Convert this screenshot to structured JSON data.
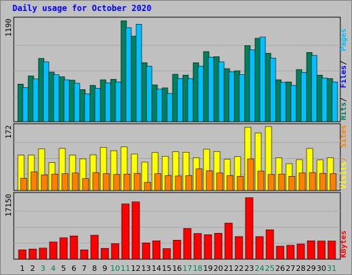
{
  "title": "Daily usage for October 2020",
  "colors": {
    "hits": "#00805c",
    "files": "#0000ff",
    "pages": "#00c0ff",
    "visits": "#ff8000",
    "sites": "#ffff00",
    "kbytes": "#ff0000",
    "weekday": "#000000",
    "weekend": "#00805c"
  },
  "chart_data": {
    "type": "bar",
    "categories": [
      "1",
      "2",
      "3",
      "4",
      "5",
      "6",
      "7",
      "8",
      "9",
      "10",
      "11",
      "12",
      "13",
      "14",
      "15",
      "16",
      "17",
      "18",
      "19",
      "20",
      "21",
      "22",
      "23",
      "24",
      "25",
      "26",
      "27",
      "28",
      "29",
      "30",
      "31"
    ],
    "weekend_days": [
      "3",
      "4",
      "10",
      "11",
      "17",
      "18",
      "24",
      "25",
      "31"
    ],
    "panels": [
      {
        "id": "hits-panel",
        "max_label": "1190",
        "ymax": 1190,
        "legend": [
          {
            "text": "Hits",
            "color": "#00805c"
          },
          {
            "text": "Files",
            "color": "#0000ff"
          },
          {
            "text": "Pages",
            "color": "#00c0ff"
          }
        ],
        "separator_color": "#000000",
        "series": [
          {
            "name": "Hits",
            "color": "#00805c",
            "values": [
              440,
              535,
              740,
              580,
              525,
              485,
              375,
              425,
              490,
              495,
              1180,
              1000,
              690,
              430,
              395,
              555,
              545,
              690,
              820,
              760,
              620,
              595,
              890,
              975,
              800,
              490,
              465,
              610,
              810,
              545,
              505
            ]
          },
          {
            "name": "Files",
            "color": "#0000ff",
            "values": [
              300,
              370,
              560,
              420,
              370,
              330,
              260,
              290,
              330,
              340,
              620,
              650,
              450,
              290,
              270,
              390,
              380,
              480,
              560,
              520,
              430,
              410,
              560,
              600,
              540,
              330,
              310,
              410,
              520,
              370,
              340
            ]
          },
          {
            "name": "Pages",
            "color": "#00c0ff",
            "values": [
              400,
              500,
              700,
              550,
              490,
              450,
              325,
              390,
              455,
              465,
              1100,
              1140,
              650,
              380,
              330,
              505,
              505,
              650,
              755,
              700,
              585,
              550,
              840,
              990,
              745,
              460,
              425,
              575,
              775,
              510,
              465
            ]
          }
        ]
      },
      {
        "id": "visits-panel",
        "max_label": "172",
        "ymax": 172,
        "legend": [
          {
            "text": "Visits",
            "color": "#ffff00"
          },
          {
            "text": "Sites",
            "color": "#ff8000"
          }
        ],
        "separator_color": "#ff8000",
        "series": [
          {
            "name": "Visits",
            "color": "#ffff00",
            "values": [
              95,
              95,
              112,
              75,
              113,
              95,
              85,
              96,
              116,
              107,
              117,
              98,
              76,
              102,
              92,
              104,
              103,
              88,
              111,
              105,
              84,
              91,
              170,
              155,
              172,
              88,
              72,
              83,
              113,
              82,
              88
            ]
          },
          {
            "name": "Sites",
            "color": "#ff8000",
            "values": [
              33,
              50,
              42,
              44,
              45,
              47,
              32,
              48,
              45,
              43,
              44,
              46,
              22,
              45,
              40,
              39,
              40,
              58,
              53,
              47,
              40,
              38,
              85,
              52,
              43,
              44,
              38,
              47,
              48,
              46,
              45
            ]
          }
        ]
      },
      {
        "id": "kbytes-panel",
        "max_label": "17150",
        "ymax": 17150,
        "legend": [
          {
            "text": "KBytes",
            "color": "#ff0000"
          }
        ],
        "separator_color": "#000000",
        "series": [
          {
            "name": "KBytes",
            "color": "#ff0000",
            "values": [
              2500,
              2730,
              2980,
              4620,
              5750,
              6240,
              2500,
              6430,
              2920,
              4160,
              14830,
              15370,
              4380,
              4930,
              2850,
              5110,
              8250,
              6890,
              6560,
              6960,
              9680,
              6070,
              16500,
              6070,
              7890,
              3500,
              3730,
              4070,
              4930,
              4880,
              4880
            ]
          }
        ]
      }
    ]
  }
}
